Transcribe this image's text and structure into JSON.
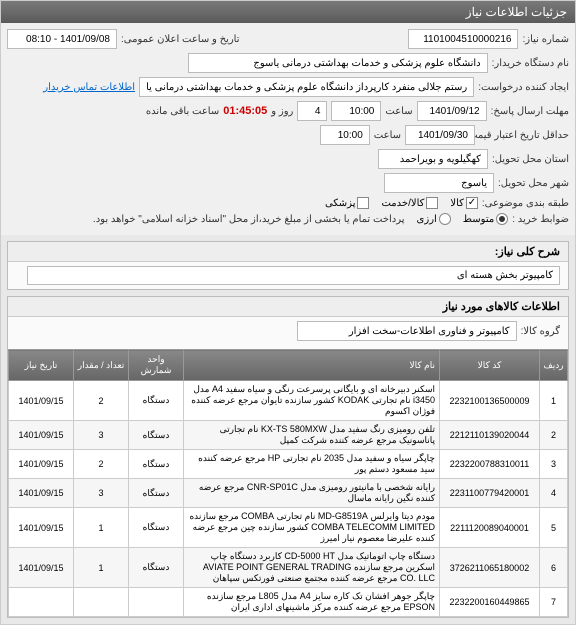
{
  "header": {
    "title": "جزئیات اطلاعات نیاز"
  },
  "form": {
    "need_no_label": "شماره نیاز:",
    "need_no": "1101004510000216",
    "announce_label": "تاریخ و ساعت اعلان عمومی:",
    "announce_value": "1401/09/08 - 08:10",
    "buyer_label": "نام دستگاه خریدار:",
    "buyer_value": "دانشگاه علوم پزشکی و خدمات بهداشتی درمانی یاسوج",
    "creator_label": "ایجاد کننده درخواست:",
    "creator_value": "رستم جلالی منفرد کارپرداز دانشگاه علوم پزشکی و خدمات بهداشتی درمانی یا",
    "contact_link": "اطلاعات تماس خریدار",
    "deadline_label": "مهلت ارسال پاسخ:",
    "deadline_date": "1401/09/12",
    "time_label": "ساعت",
    "deadline_time": "10:00",
    "days_val": "4",
    "days_label": "روز و",
    "timer": "01:45:05",
    "timer_label": "ساعت باقی مانده",
    "validity_label": "حداقل تاریخ اعتبار قیمت تا تاریخ:",
    "validity_date": "1401/09/30",
    "validity_time": "10:00",
    "province_label": "استان محل تحویل:",
    "province_value": "کهگیلویه و بویراحمد",
    "city_label": "شهر محل تحویل:",
    "city_value": "یاسوج",
    "class_label": "طبقه بندی موضوعی:",
    "cb_goods": "کالا",
    "cb_service": "کالا/خدمت",
    "cb_medical": "پزشکی",
    "rule_label": "ضوابط خرید :",
    "rule_radio1": "متوسط",
    "rule_radio2": "ارزی",
    "rule_desc": "پرداخت تمام یا بخشی از مبلغ خرید،از محل \"اسناد خزانه اسلامی\" خواهد بود."
  },
  "need_desc": {
    "title": "شرح کلی نیاز:",
    "value": "کامپیوتر بخش هسته ای"
  },
  "goods_info": {
    "title": "اطلاعات کالاهای مورد نیاز",
    "group_label": "گروه کالا:",
    "group_value": "کامپیوتر و فناوری اطلاعات-سخت افزار"
  },
  "table": {
    "headers": {
      "idx": "ردیف",
      "code": "کد کالا",
      "name": "نام کالا",
      "unit": "واحد شمارش",
      "qty": "تعداد / مقدار",
      "date": "تاریخ نیاز"
    },
    "rows": [
      {
        "idx": "1",
        "code": "2232100136500009",
        "name": "اسکنر دبیرخانه ای و بایگانی پرسرعت رنگی و سیاه سفید A4 مدل i3450 نام تجارتی KODAK کشور سازنده تایوان مرجع عرضه کننده فوژان اکسوم",
        "unit": "دستگاه",
        "qty": "2",
        "date": "1401/09/15"
      },
      {
        "idx": "2",
        "code": "2212110139020044",
        "name": "تلفن رومیزی رنگ سفید مدل KX-TS 580MXW نام تجارتی پاناسونیک مرجع عرضه کننده شرکت کمپل",
        "unit": "دستگاه",
        "qty": "3",
        "date": "1401/09/15"
      },
      {
        "idx": "3",
        "code": "2232200788310011",
        "name": "چاپگر سیاه و سفید مدل 2035 نام تجارتی HP مرجع عرضه کننده سید مسعود دستم پور",
        "unit": "دستگاه",
        "qty": "2",
        "date": "1401/09/15"
      },
      {
        "idx": "4",
        "code": "2231100779420001",
        "name": "رایانه شخصی با مانیتور رومیزی مدل CNR-SP01C مرجع عرضه کننده نگین رایانه ماسال",
        "unit": "دستگاه",
        "qty": "3",
        "date": "1401/09/15"
      },
      {
        "idx": "5",
        "code": "2211120089040001",
        "name": "مودم دیتا وایرلس MD-G8519A نام تجارتی COMBA مرجع سازنده COMBA TELECOMM LIMITED کشور سازنده چین مرجع عرضه کننده علیرضا معصوم نیار امیرز",
        "unit": "دستگاه",
        "qty": "1",
        "date": "1401/09/15"
      },
      {
        "idx": "6",
        "code": "3726211065180002",
        "name": "دستگاه چاپ اتوماتیک مدل CD-5000 HT کاربرد دستگاه چاپ اسکرین مرجع سازنده AVIATE POINT GENERAL TRADING CO. LLC مرجع عرضه کننده مجتمع صنعتی فورتکس سپاهان",
        "unit": "دستگاه",
        "qty": "1",
        "date": "1401/09/15"
      },
      {
        "idx": "7",
        "code": "2232200160449865",
        "name": "چاپگر جوهر افشان تک کاره سایز A4 مدل L805 مرجع سازنده EPSON مرجع عرضه کننده مرکز ماشینهای اداری ایران",
        "unit": "",
        "qty": "",
        "date": ""
      }
    ]
  }
}
